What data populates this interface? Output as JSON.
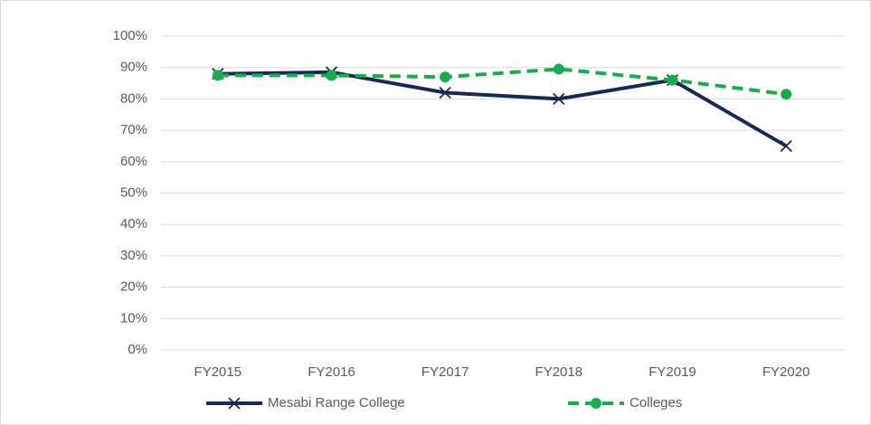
{
  "chart_data": {
    "type": "line",
    "categories": [
      "FY2015",
      "FY2016",
      "FY2017",
      "FY2018",
      "FY2019",
      "FY2020"
    ],
    "series": [
      {
        "name": "Mesabi Range College",
        "color": "#172a55",
        "marker": "x",
        "dashed": false,
        "values": [
          88,
          88.5,
          82,
          80,
          86,
          65
        ]
      },
      {
        "name": "Colleges",
        "color": "#1aab4b",
        "marker": "circle",
        "dashed": true,
        "values": [
          87.5,
          87.5,
          87,
          89.5,
          86,
          81.5
        ]
      }
    ],
    "ylim": [
      0,
      100
    ],
    "yticks": [
      {
        "value": 0,
        "label": "0%"
      },
      {
        "value": 10,
        "label": "10%"
      },
      {
        "value": 20,
        "label": "20%"
      },
      {
        "value": 30,
        "label": "30%"
      },
      {
        "value": 40,
        "label": "40%"
      },
      {
        "value": 50,
        "label": "50%"
      },
      {
        "value": 60,
        "label": "60%"
      },
      {
        "value": 70,
        "label": "70%"
      },
      {
        "value": 80,
        "label": "80%"
      },
      {
        "value": 90,
        "label": "90%"
      },
      {
        "value": 100,
        "label": "100%"
      }
    ],
    "grid": true,
    "legend": "bottom"
  }
}
